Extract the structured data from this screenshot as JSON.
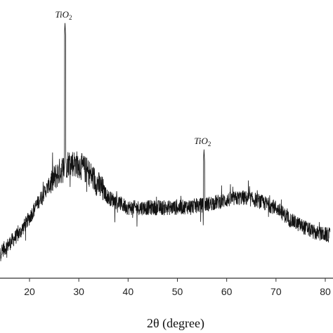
{
  "chart_data": {
    "type": "line",
    "title": "",
    "xlabel": "2θ (degree)",
    "ylabel": "",
    "xlim": [
      13,
      81
    ],
    "ylim": [
      0,
      100
    ],
    "xticks": [
      {
        "value": 20,
        "label": "20"
      },
      {
        "value": 30,
        "label": "30"
      },
      {
        "value": 40,
        "label": "40"
      },
      {
        "value": 50,
        "label": "50"
      },
      {
        "value": 60,
        "label": "60"
      },
      {
        "value": 70,
        "label": "70"
      },
      {
        "value": 80,
        "label": "80"
      }
    ],
    "grid": false,
    "legend": "none",
    "color": "#111111",
    "envelope": {
      "x": [
        13,
        15,
        18,
        20,
        22,
        24,
        26,
        28,
        30,
        32,
        34,
        36,
        40,
        45,
        50,
        55,
        60,
        63,
        66,
        70,
        73,
        76,
        78,
        81
      ],
      "y": [
        5,
        8,
        14,
        20,
        27,
        33,
        38,
        42,
        41,
        38,
        33,
        28,
        24,
        24,
        24,
        25,
        27,
        28,
        27,
        24,
        19,
        16,
        14,
        13
      ]
    },
    "peaks": [
      {
        "x": 27.2,
        "y": 97,
        "label_main": "TiO",
        "label_sub": "2"
      },
      {
        "x": 55.4,
        "y": 47,
        "label_main": "TiO",
        "label_sub": "2"
      }
    ]
  }
}
